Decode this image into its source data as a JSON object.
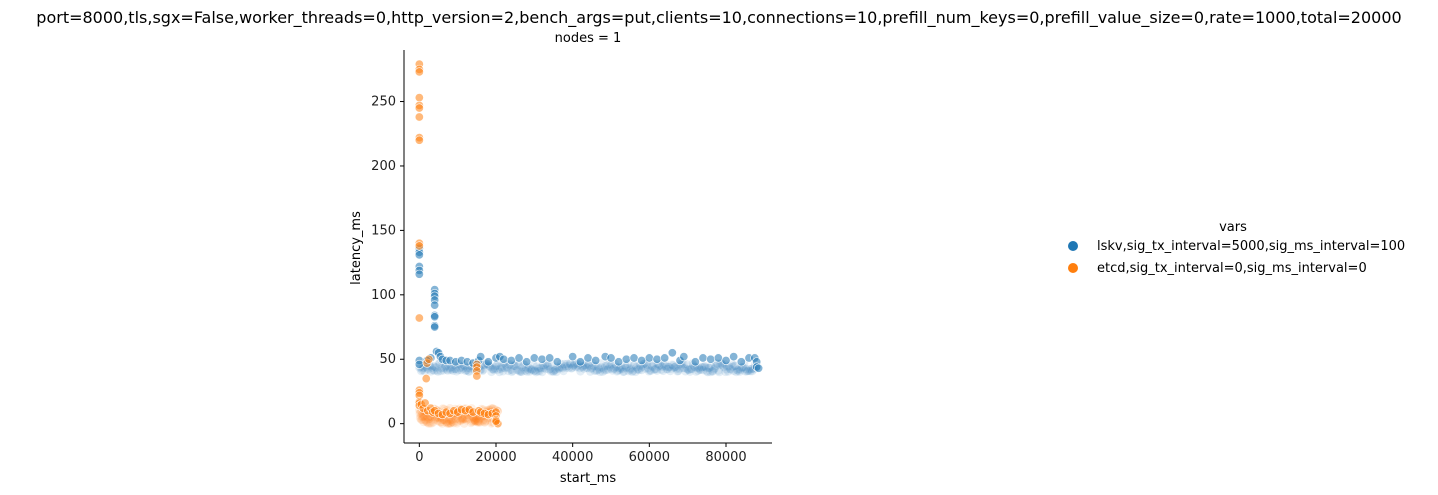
{
  "chart_data": {
    "type": "scatter",
    "title": "port=8000,tls,sgx=False,worker_threads=0,http_version=2,bench_args=put,clients=10,connections=10,prefill_num_keys=0,prefill_value_size=0,rate=1000,total=20000",
    "facet_title": "nodes = 1",
    "xlabel": "start_ms",
    "ylabel": "latency_ms",
    "xlim": [
      -4000,
      92000
    ],
    "ylim": [
      -15,
      290
    ],
    "x_ticks": [
      0,
      20000,
      40000,
      60000,
      80000
    ],
    "x_tick_labels": [
      "0",
      "20000",
      "40000",
      "60000",
      "80000"
    ],
    "y_ticks": [
      0,
      50,
      100,
      150,
      200,
      250
    ],
    "y_tick_labels": [
      "0",
      "50",
      "100",
      "150",
      "200",
      "250"
    ],
    "grid": false,
    "legend": {
      "title": "vars",
      "placement": "right",
      "entries": [
        {
          "label": "lskv,sig_tx_interval=5000,sig_ms_interval=100",
          "color": "#1f77b4"
        },
        {
          "label": "etcd,sig_tx_interval=0,sig_ms_interval=0",
          "color": "#ff7f0e"
        }
      ]
    },
    "series": [
      {
        "name": "lskv,sig_tx_interval=5000,sig_ms_interval=100",
        "color": "#1f77b4",
        "x_range": [
          0,
          88000
        ],
        "baseline_band": [
          40,
          47
        ],
        "points": [
          [
            0,
            136
          ],
          [
            0,
            133
          ],
          [
            0,
            131
          ],
          [
            0,
            122
          ],
          [
            0,
            119
          ],
          [
            0,
            116
          ],
          [
            0,
            49
          ],
          [
            0,
            46
          ],
          [
            4000,
            104
          ],
          [
            4000,
            101
          ],
          [
            4000,
            99
          ],
          [
            4000,
            96
          ],
          [
            4000,
            92
          ],
          [
            4000,
            84
          ],
          [
            4000,
            83
          ],
          [
            4000,
            76
          ],
          [
            4000,
            75
          ],
          [
            4500,
            56
          ],
          [
            5000,
            55
          ],
          [
            5500,
            52
          ],
          [
            6000,
            50
          ],
          [
            3000,
            51
          ],
          [
            2000,
            49
          ],
          [
            7000,
            49
          ],
          [
            8000,
            49
          ],
          [
            9500,
            48
          ],
          [
            11000,
            49
          ],
          [
            12500,
            48
          ],
          [
            14000,
            47
          ],
          [
            15500,
            49
          ],
          [
            16000,
            52
          ],
          [
            18000,
            48
          ],
          [
            20000,
            51
          ],
          [
            21000,
            52
          ],
          [
            22000,
            50
          ],
          [
            24000,
            49
          ],
          [
            26000,
            51
          ],
          [
            28000,
            48
          ],
          [
            30000,
            51
          ],
          [
            32000,
            50
          ],
          [
            34000,
            51
          ],
          [
            36000,
            48
          ],
          [
            40000,
            52
          ],
          [
            42000,
            48
          ],
          [
            44000,
            51
          ],
          [
            46000,
            49
          ],
          [
            48500,
            52
          ],
          [
            50000,
            51
          ],
          [
            52000,
            48
          ],
          [
            54000,
            50
          ],
          [
            56000,
            51
          ],
          [
            58000,
            49
          ],
          [
            60000,
            51
          ],
          [
            62000,
            50
          ],
          [
            64000,
            51
          ],
          [
            66000,
            55
          ],
          [
            68000,
            49
          ],
          [
            69000,
            52
          ],
          [
            72000,
            48
          ],
          [
            74000,
            51
          ],
          [
            76000,
            50
          ],
          [
            78000,
            51
          ],
          [
            80000,
            49
          ],
          [
            82000,
            52
          ],
          [
            84000,
            48
          ],
          [
            86000,
            51
          ],
          [
            87500,
            51
          ],
          [
            88000,
            48
          ],
          [
            88000,
            44
          ],
          [
            88500,
            43
          ]
        ]
      },
      {
        "name": "etcd,sig_tx_interval=0,sig_ms_interval=0",
        "color": "#ff7f0e",
        "x_range": [
          0,
          20500
        ],
        "points": [
          [
            0,
            279
          ],
          [
            0,
            275
          ],
          [
            0,
            273
          ],
          [
            0,
            253
          ],
          [
            0,
            247
          ],
          [
            0,
            245
          ],
          [
            0,
            238
          ],
          [
            0,
            222
          ],
          [
            0,
            220
          ],
          [
            0,
            140
          ],
          [
            0,
            138
          ],
          [
            0,
            82
          ],
          [
            0,
            26
          ],
          [
            0,
            24
          ],
          [
            0,
            22
          ],
          [
            0,
            17
          ],
          [
            0,
            16
          ],
          [
            0,
            14
          ],
          [
            500,
            15
          ],
          [
            1000,
            12
          ],
          [
            1500,
            16
          ],
          [
            1800,
            35
          ],
          [
            2000,
            47
          ],
          [
            2500,
            50
          ],
          [
            2200,
            10
          ],
          [
            3000,
            12
          ],
          [
            3500,
            9
          ],
          [
            4000,
            10
          ],
          [
            5000,
            8
          ],
          [
            6000,
            7
          ],
          [
            7000,
            9
          ],
          [
            8000,
            8
          ],
          [
            9000,
            10
          ],
          [
            10000,
            9
          ],
          [
            11000,
            11
          ],
          [
            12000,
            10
          ],
          [
            13000,
            11
          ],
          [
            14000,
            9
          ],
          [
            15000,
            46
          ],
          [
            15000,
            44
          ],
          [
            15000,
            41
          ],
          [
            15000,
            37
          ],
          [
            15500,
            10
          ],
          [
            16000,
            9
          ],
          [
            17000,
            8
          ],
          [
            18000,
            7
          ],
          [
            19000,
            8
          ],
          [
            20000,
            9
          ],
          [
            20000,
            6
          ],
          [
            20000,
            3
          ],
          [
            20000,
            1
          ],
          [
            20500,
            0
          ],
          [
            20000,
            2
          ]
        ],
        "dense_band": [
          0,
          12
        ]
      }
    ]
  }
}
